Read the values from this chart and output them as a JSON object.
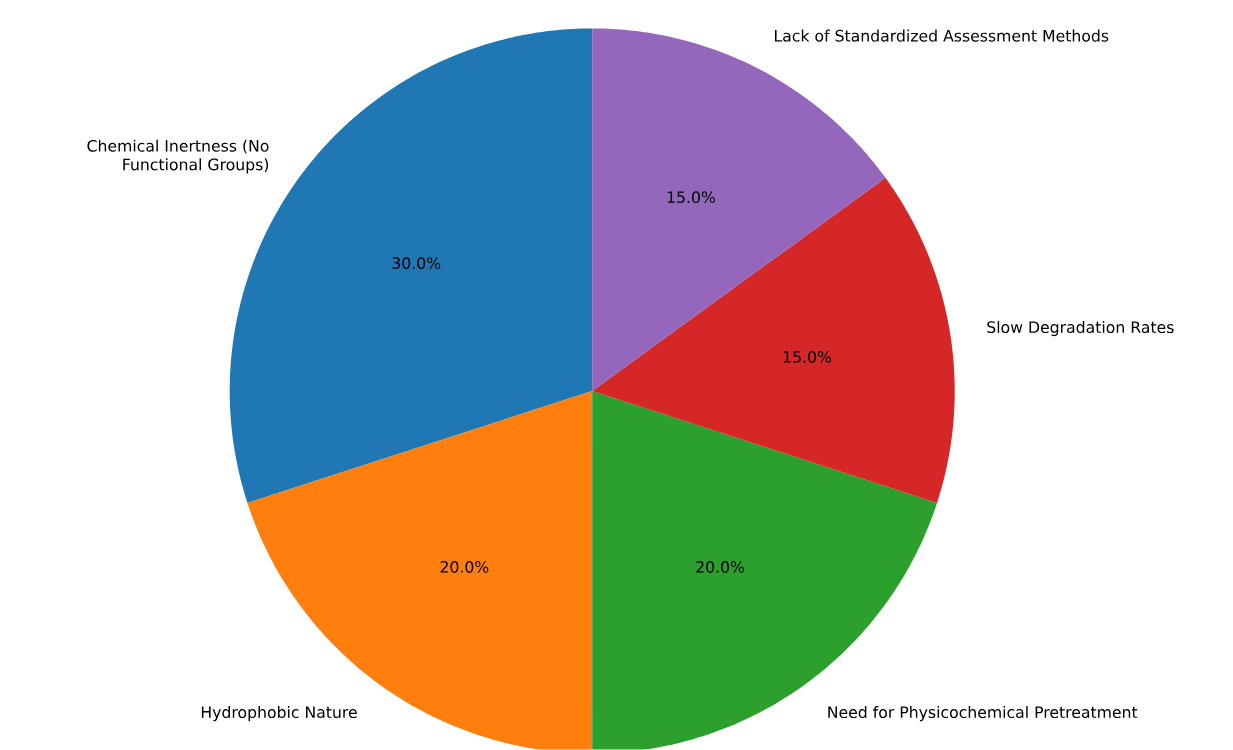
{
  "chart_data": {
    "type": "pie",
    "categories": [
      "Chemical Inertness (No Functional Groups)",
      "Hydrophobic Nature",
      "Need for Physicochemical Pretreatment",
      "Slow Degradation Rates",
      "Lack of Standardized Assessment Methods"
    ],
    "values": [
      30,
      20,
      20,
      15,
      15
    ],
    "colors": [
      "#1f77b4",
      "#ff7f0e",
      "#2ca02c",
      "#d62728",
      "#9467bd"
    ],
    "value_labels": [
      "30.0%",
      "20.0%",
      "20.0%",
      "15.0%",
      "15.0%"
    ]
  }
}
